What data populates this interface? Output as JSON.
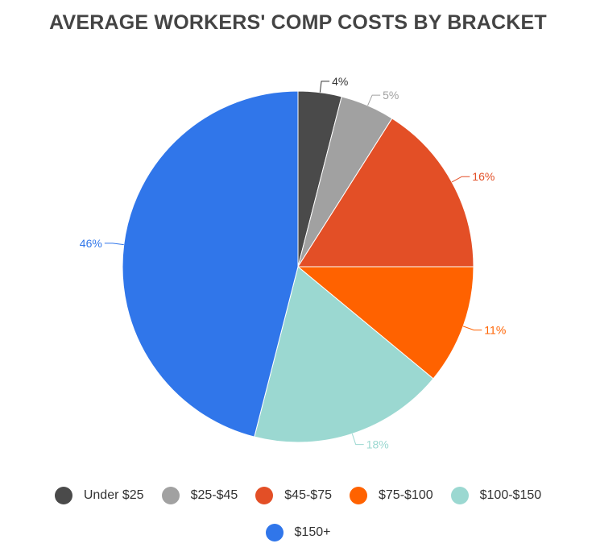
{
  "chart_data": {
    "type": "pie",
    "title": "AVERAGE WORKERS' COMP COSTS BY BRACKET",
    "categories": [
      "Under $25",
      "$25-$45",
      "$45-$75",
      "$75-$100",
      "$100-$150",
      "$150+"
    ],
    "values": [
      4,
      5,
      16,
      11,
      18,
      46
    ],
    "value_labels": [
      "4%",
      "5%",
      "16%",
      "11%",
      "18%",
      "46%"
    ],
    "colors": [
      "#4a4a4a",
      "#a1a1a1",
      "#e34f26",
      "#ff6200",
      "#9bd8d1",
      "#3076ea"
    ],
    "label_colors": [
      "#333333",
      "#a1a1a1",
      "#e34f26",
      "#ff6200",
      "#9bd8d1",
      "#3076ea"
    ],
    "legend_position": "bottom"
  }
}
